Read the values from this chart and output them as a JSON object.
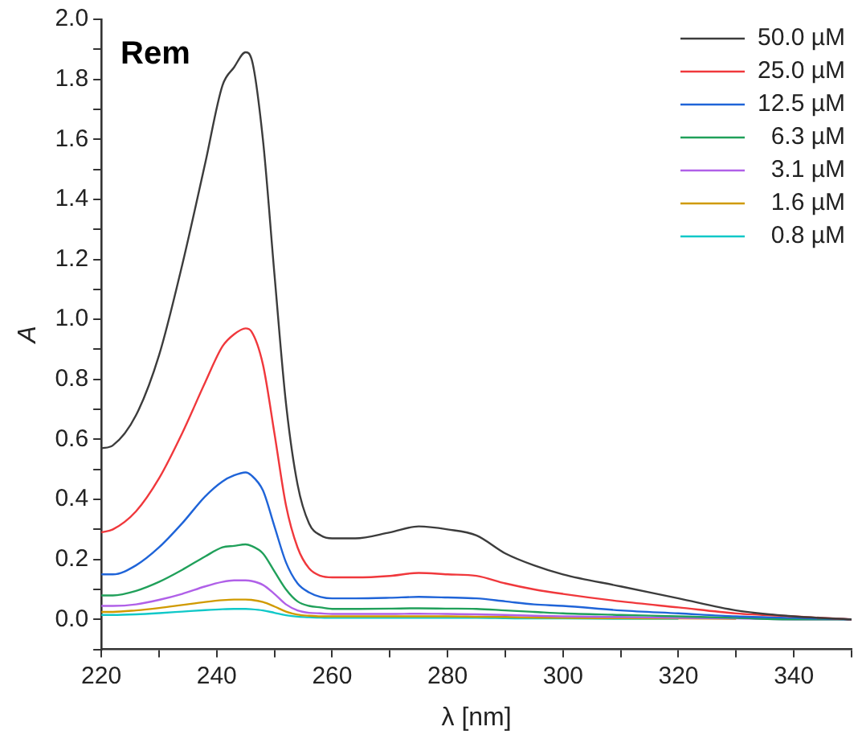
{
  "chart_data": {
    "type": "line",
    "xlabel": "λ [nm]",
    "ylabel": "A",
    "annotations": [
      "Rem"
    ],
    "x": [
      220,
      222,
      226,
      230,
      234,
      238,
      241,
      243,
      245,
      246,
      248,
      250,
      252,
      254,
      256,
      258,
      260,
      264,
      270,
      275,
      280,
      285,
      290,
      295,
      300,
      310,
      320,
      330,
      340,
      350
    ],
    "series": [
      {
        "name": "50.0 µM",
        "color": "#3c3c3c",
        "values": [
          0.57,
          0.58,
          0.68,
          0.88,
          1.18,
          1.52,
          1.78,
          1.84,
          1.89,
          1.87,
          1.6,
          1.15,
          0.72,
          0.45,
          0.32,
          0.28,
          0.27,
          0.27,
          0.29,
          0.31,
          0.3,
          0.28,
          0.22,
          0.18,
          0.15,
          0.11,
          0.07,
          0.03,
          0.01,
          0
        ]
      },
      {
        "name": "25.0 µM",
        "color": "#f0383c",
        "values": [
          0.29,
          0.3,
          0.36,
          0.47,
          0.62,
          0.79,
          0.91,
          0.95,
          0.97,
          0.96,
          0.85,
          0.62,
          0.38,
          0.24,
          0.17,
          0.145,
          0.14,
          0.14,
          0.145,
          0.155,
          0.15,
          0.145,
          0.12,
          0.1,
          0.085,
          0.06,
          0.04,
          0.02,
          0.01,
          0
        ]
      },
      {
        "name": "12.5 µM",
        "color": "#1f64d8",
        "values": [
          0.15,
          0.15,
          0.18,
          0.24,
          0.32,
          0.41,
          0.46,
          0.48,
          0.49,
          0.48,
          0.43,
          0.31,
          0.19,
          0.12,
          0.09,
          0.075,
          0.07,
          0.07,
          0.072,
          0.075,
          0.073,
          0.07,
          0.06,
          0.05,
          0.045,
          0.03,
          0.02,
          0.01,
          0.005,
          0
        ]
      },
      {
        "name": "6.3 µM",
        "color": "#20a05a",
        "values": [
          0.08,
          0.08,
          0.095,
          0.125,
          0.165,
          0.21,
          0.24,
          0.245,
          0.25,
          0.245,
          0.22,
          0.16,
          0.1,
          0.06,
          0.045,
          0.04,
          0.035,
          0.035,
          0.036,
          0.037,
          0.036,
          0.035,
          0.03,
          0.025,
          0.02,
          0.015,
          0.01,
          0.005,
          0,
          0
        ]
      },
      {
        "name": "3.1 µM",
        "color": "#b060e8",
        "values": [
          0.045,
          0.045,
          0.05,
          0.065,
          0.085,
          0.11,
          0.125,
          0.13,
          0.13,
          0.128,
          0.115,
          0.085,
          0.05,
          0.03,
          0.022,
          0.02,
          0.018,
          0.018,
          0.018,
          0.019,
          0.018,
          0.017,
          0.015,
          0.012,
          0.01,
          0.008,
          0.005,
          0.003,
          0,
          0
        ]
      },
      {
        "name": "1.6 µM",
        "color": "#d09a00",
        "values": [
          0.025,
          0.025,
          0.03,
          0.038,
          0.048,
          0.058,
          0.064,
          0.066,
          0.066,
          0.065,
          0.058,
          0.043,
          0.026,
          0.016,
          0.012,
          0.01,
          0.01,
          0.01,
          0.01,
          0.01,
          0.01,
          0.009,
          0.008,
          0.006,
          0.005,
          0.004,
          0.003,
          0.002,
          null,
          null
        ]
      },
      {
        "name": "0.8 µM",
        "color": "#10c8c8",
        "values": [
          0.015,
          0.015,
          0.017,
          0.021,
          0.026,
          0.031,
          0.034,
          0.035,
          0.035,
          0.034,
          0.03,
          0.022,
          0.014,
          0.009,
          0.007,
          0.006,
          0.005,
          0.005,
          0.005,
          0.005,
          0.005,
          0.005,
          0.004,
          0.003,
          0.003,
          0.002,
          0.002,
          null,
          null,
          null
        ]
      }
    ],
    "xlim": [
      220,
      350
    ],
    "xticks": [
      220,
      {
        "value": 230,
        "label": null
      },
      240,
      {
        "value": 250,
        "label": null
      },
      260,
      {
        "value": 270,
        "label": null
      },
      280,
      {
        "value": 290,
        "label": null
      },
      300,
      {
        "value": 310,
        "label": null
      },
      320,
      {
        "value": 330,
        "label": null
      },
      340,
      {
        "value": 350,
        "label": null
      }
    ],
    "ylim": [
      -0.1,
      2.0
    ],
    "yticks": [
      {
        "value": -0.1,
        "label": null
      },
      {
        "value": 0,
        "label": "0.0"
      },
      {
        "value": 0.1,
        "label": null
      },
      0.2,
      {
        "value": 0.3,
        "label": null
      },
      0.4,
      {
        "value": 0.5,
        "label": null
      },
      0.6,
      {
        "value": 0.7,
        "label": null
      },
      0.8,
      {
        "value": 0.9,
        "label": null
      },
      {
        "value": 1,
        "label": "1.0"
      },
      {
        "value": 1.1,
        "label": null
      },
      1.2,
      {
        "value": 1.3,
        "label": null
      },
      1.4,
      {
        "value": 1.5,
        "label": null
      },
      1.6,
      {
        "value": 1.7,
        "label": null
      },
      1.8,
      {
        "value": 1.9,
        "label": null
      },
      {
        "value": 2,
        "label": "2.0"
      }
    ],
    "grid": false,
    "legend": "top right",
    "marker": "none",
    "line_style": "solid"
  }
}
